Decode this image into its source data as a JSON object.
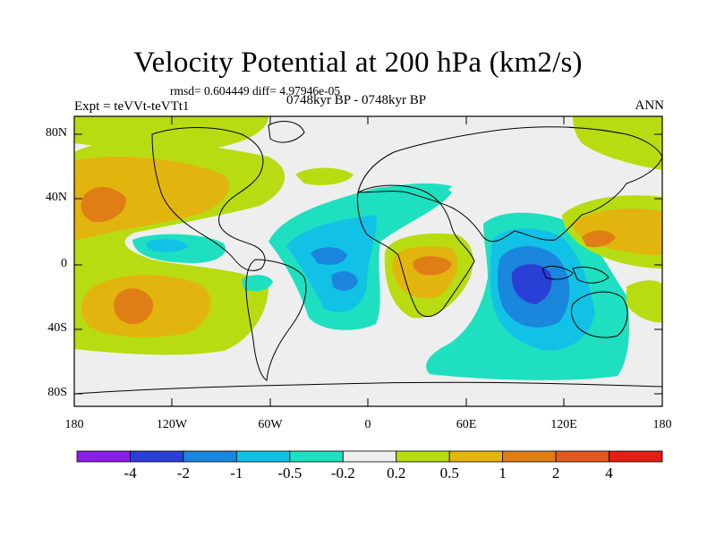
{
  "plot": {
    "title": "Velocity Potential at 200 hPa (km2/s)",
    "stats": "rmsd= 0.604449 diff= 4.97946e-05",
    "expt": "Expt = teVVt-teVTt1",
    "period": "0748kyr BP - 0748kyr BP",
    "season": "ANN"
  },
  "axes": {
    "lat_labels": [
      "80N",
      "40N",
      "0",
      "40S",
      "80S"
    ],
    "lon_labels": [
      "180",
      "120W",
      "60W",
      "0",
      "60E",
      "120E",
      "180"
    ]
  },
  "colorbar": {
    "colors": [
      "#8a1fe6",
      "#2a3fd6",
      "#1a86dc",
      "#12c2e6",
      "#1ee0c0",
      "#eeeeee",
      "#b8dc12",
      "#e2b40e",
      "#e07e16",
      "#e05a1e",
      "#e41e14"
    ],
    "labels": [
      "-4",
      "-2",
      "-1",
      "-0.5",
      "-0.2",
      "0.2",
      "0.5",
      "1",
      "2",
      "4"
    ]
  },
  "map_colors": {
    "neutral": "#eeeeee",
    "pos1": "#b8dc12",
    "pos2": "#e2b40e",
    "pos3": "#e07e16",
    "neg1": "#1ee0c0",
    "neg2": "#12c2e6",
    "neg3": "#1a86dc",
    "neg4": "#2a3fd6"
  },
  "icons": {
    "land": "coastline-outline"
  }
}
